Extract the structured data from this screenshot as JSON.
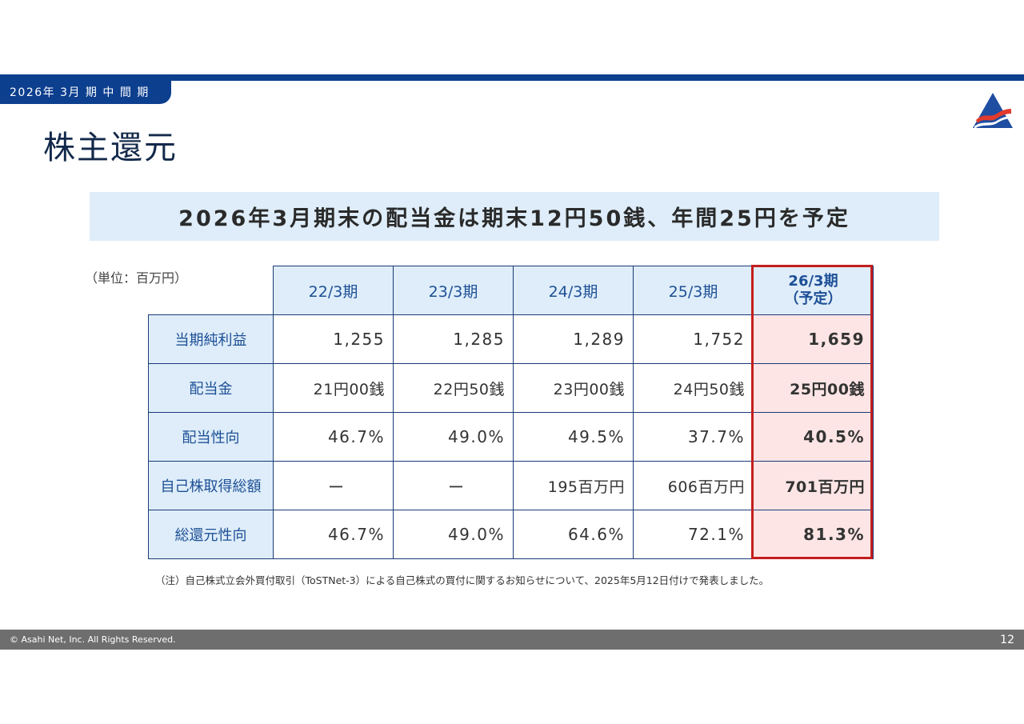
{
  "header": {
    "period_label": "2026年 3月 期 中 間 期",
    "page_title": "株主還元"
  },
  "headline": "2026年3月期末の配当金は期末12円50銭、年間25円を予定",
  "unit_label": "（単位：百万円）",
  "table": {
    "columns": [
      "22/3期",
      "23/3期",
      "24/3期",
      "25/3期"
    ],
    "highlight_column": {
      "line1": "26/3期",
      "line2": "（予定）"
    },
    "rows": [
      {
        "label": "当期純利益",
        "values": [
          "1,255",
          "1,285",
          "1,289",
          "1,752"
        ],
        "highlight": "1,659"
      },
      {
        "label": "配当金",
        "values": [
          "21円00銭",
          "22円50銭",
          "23円00銭",
          "24円50銭"
        ],
        "highlight": "25円00銭"
      },
      {
        "label": "配当性向",
        "values": [
          "46.7%",
          "49.0%",
          "49.5%",
          "37.7%"
        ],
        "highlight": "40.5%"
      },
      {
        "label": "自己株取得総額",
        "values": [
          "ー",
          "ー",
          "195百万円",
          "606百万円"
        ],
        "highlight": "701百万円"
      },
      {
        "label": "総還元性向",
        "values": [
          "46.7%",
          "49.0%",
          "64.6%",
          "72.1%"
        ],
        "highlight": "81.3%"
      }
    ]
  },
  "note": "（注）自己株式立会外買付取引（ToSTNet-3）による自己株式の買付に関するお知らせについて、2025年5月12日付けで発表しました。",
  "footer": {
    "copyright": "© Asahi Net, Inc. All Rights Reserved.",
    "page_number": "12"
  },
  "colors": {
    "brand_navy": "#0d3f8f",
    "header_cell": "#deedf9",
    "highlight_fill": "#fde5e5",
    "highlight_border": "#c41e1e",
    "footer_gray": "#6e6e6e"
  }
}
